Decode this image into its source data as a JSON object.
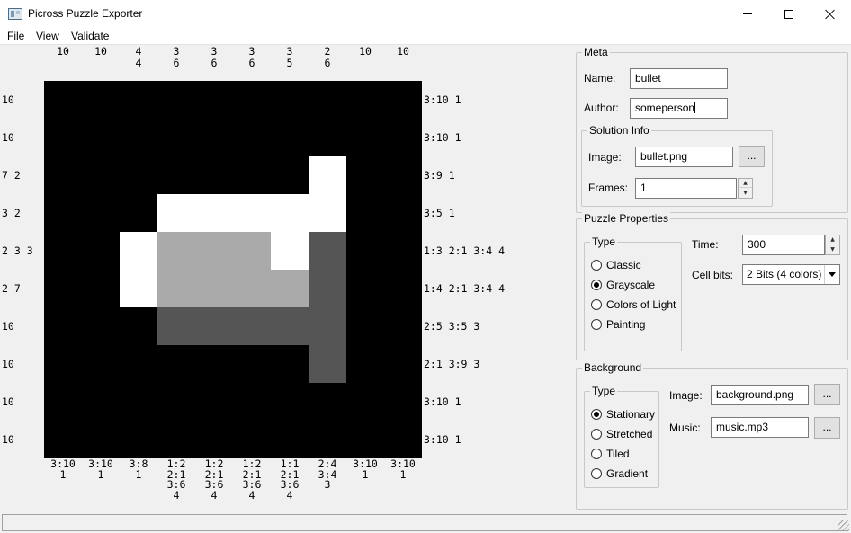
{
  "window": {
    "title": "Picross Puzzle Exporter",
    "icon": "app-window-icon"
  },
  "menu": [
    "File",
    "View",
    "Validate"
  ],
  "puzzle": {
    "top_clues": [
      [
        "10"
      ],
      [
        "10"
      ],
      [
        "4",
        "4"
      ],
      [
        "3",
        "6"
      ],
      [
        "3",
        "6"
      ],
      [
        "3",
        "6"
      ],
      [
        "3",
        "5"
      ],
      [
        "2",
        "6"
      ],
      [
        "10"
      ],
      [
        "10"
      ]
    ],
    "left_clues": [
      "10",
      "10",
      "7 2",
      "3 2",
      "2 3 3",
      "2 7",
      "10",
      "10",
      "10",
      "10"
    ],
    "right_clues": [
      "3:10 1",
      "3:10 1",
      "3:9 1",
      "3:5 1",
      "1:3 2:1 3:4 4",
      "1:4 2:1 3:4 4",
      "2:5 3:5 3",
      "2:1 3:9 3",
      "3:10 1",
      "3:10 1"
    ],
    "bottom_clues": [
      [
        "3:10",
        "1"
      ],
      [
        "3:10",
        "1"
      ],
      [
        "3:8",
        "1"
      ],
      [
        "1:2",
        "2:1",
        "3:6",
        "4"
      ],
      [
        "1:2",
        "2:1",
        "3:6",
        "4"
      ],
      [
        "1:2",
        "2:1",
        "3:6",
        "4"
      ],
      [
        "1:1",
        "2:1",
        "3:6",
        "4"
      ],
      [
        "2:4",
        "3:4",
        "3"
      ],
      [
        "3:10",
        "1"
      ],
      [
        "3:10",
        "1"
      ]
    ],
    "grid": [
      [
        0,
        0,
        0,
        0,
        0,
        0,
        0,
        0,
        0,
        0
      ],
      [
        0,
        0,
        0,
        0,
        0,
        0,
        0,
        0,
        0,
        0
      ],
      [
        0,
        0,
        0,
        0,
        0,
        0,
        0,
        3,
        0,
        0
      ],
      [
        0,
        0,
        0,
        3,
        3,
        3,
        3,
        3,
        0,
        0
      ],
      [
        0,
        0,
        3,
        2,
        2,
        2,
        3,
        1,
        0,
        0
      ],
      [
        0,
        0,
        3,
        2,
        2,
        2,
        2,
        1,
        0,
        0
      ],
      [
        0,
        0,
        0,
        1,
        1,
        1,
        1,
        1,
        0,
        0
      ],
      [
        0,
        0,
        0,
        0,
        0,
        0,
        0,
        1,
        0,
        0
      ],
      [
        0,
        0,
        0,
        0,
        0,
        0,
        0,
        0,
        0,
        0
      ],
      [
        0,
        0,
        0,
        0,
        0,
        0,
        0,
        0,
        0,
        0
      ]
    ],
    "palette": [
      "#000000",
      "#555555",
      "#aaaaaa",
      "#ffffff"
    ]
  },
  "meta": {
    "title": "Meta",
    "name_label": "Name:",
    "name_value": "bullet",
    "author_label": "Author:",
    "author_value": "someperson",
    "solution": {
      "title": "Solution Info",
      "image_label": "Image:",
      "image_value": "bullet.png",
      "browse_label": "...",
      "frames_label": "Frames:",
      "frames_value": "1"
    }
  },
  "puzzle_properties": {
    "title": "Puzzle Properties",
    "type_title": "Type",
    "types": [
      "Classic",
      "Grayscale",
      "Colors of Light",
      "Painting"
    ],
    "selected_type": "Grayscale",
    "time_label": "Time:",
    "time_value": "300",
    "cell_bits_label": "Cell bits:",
    "cell_bits_value": "2 Bits (4 colors)"
  },
  "background": {
    "title": "Background",
    "type_title": "Type",
    "types": [
      "Stationary",
      "Stretched",
      "Tiled",
      "Gradient"
    ],
    "selected_type": "Stationary",
    "image_label": "Image:",
    "image_value": "background.png",
    "music_label": "Music:",
    "music_value": "music.mp3",
    "browse_label": "..."
  },
  "status": {
    "text": ""
  }
}
